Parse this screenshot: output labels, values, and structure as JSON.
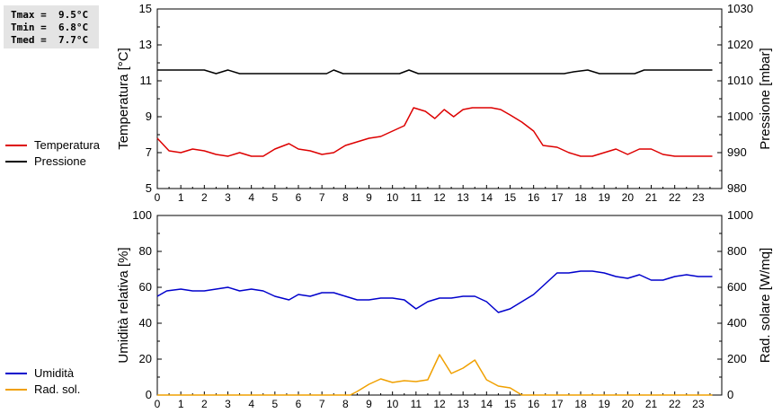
{
  "stats": {
    "tmax": "Tmax =  9.5°C",
    "tmin": "Tmin =  6.8°C",
    "tmed": "Tmed =  7.7°C"
  },
  "colors": {
    "temperatura": "#dd0000",
    "pressione": "#000000",
    "umidita": "#0000cc",
    "rad_sol": "#f0a000",
    "axis": "#000000",
    "grid": "#000000"
  },
  "legend_top": [
    {
      "label": "Temperatura",
      "color_key": "temperatura"
    },
    {
      "label": "Pressione",
      "color_key": "pressione"
    }
  ],
  "legend_bottom": [
    {
      "label": "Umidità",
      "color_key": "umidita"
    },
    {
      "label": "Rad. sol.",
      "color_key": "rad_sol"
    }
  ],
  "chart_data": [
    {
      "type": "line",
      "x_ticks": [
        "0",
        "1",
        "2",
        "3",
        "4",
        "5",
        "6",
        "7",
        "8",
        "9",
        "10",
        "11",
        "12",
        "13",
        "14",
        "15",
        "16",
        "17",
        "18",
        "19",
        "20",
        "21",
        "22",
        "23"
      ],
      "xlim": [
        0,
        24
      ],
      "ylabel": "Temperatura [°C]",
      "ylim": [
        5,
        15
      ],
      "y_ticks": [
        "5",
        "7",
        "9",
        "11",
        "13",
        "15"
      ],
      "ylabel_right": "Pressione [mbar]",
      "ylim_right": [
        980,
        1030
      ],
      "y_ticks_right": [
        "980",
        "990",
        "1000",
        "1010",
        "1020",
        "1030"
      ],
      "grid": false,
      "series": [
        {
          "name": "Temperatura",
          "axis": "left",
          "color_key": "temperatura",
          "x": [
            0,
            0.5,
            1,
            1.5,
            2,
            2.5,
            3,
            3.5,
            4,
            4.5,
            5,
            5.6,
            6,
            6.5,
            7,
            7.5,
            8,
            8.5,
            9,
            9.5,
            10,
            10.5,
            10.9,
            11.4,
            11.8,
            12.2,
            12.6,
            13,
            13.4,
            13.8,
            14.2,
            14.6,
            15,
            15.5,
            16,
            16.4,
            17,
            17.5,
            18,
            18.5,
            19,
            19.5,
            20,
            20.5,
            21,
            21.5,
            22,
            22.5,
            23,
            23.6
          ],
          "y": [
            7.8,
            7.1,
            7.0,
            7.2,
            7.1,
            6.9,
            6.8,
            7.0,
            6.8,
            6.8,
            7.2,
            7.5,
            7.2,
            7.1,
            6.9,
            7.0,
            7.4,
            7.6,
            7.8,
            7.9,
            8.2,
            8.5,
            9.5,
            9.3,
            8.9,
            9.4,
            9.0,
            9.4,
            9.5,
            9.5,
            9.5,
            9.4,
            9.1,
            8.7,
            8.2,
            7.4,
            7.3,
            7.0,
            6.8,
            6.8,
            7.0,
            7.2,
            6.9,
            7.2,
            7.2,
            6.9,
            6.8,
            6.8,
            6.8,
            6.8
          ]
        },
        {
          "name": "Pressione",
          "axis": "right",
          "color_key": "pressione",
          "x": [
            0,
            2,
            2.5,
            3,
            3.5,
            7.2,
            7.5,
            7.9,
            10.3,
            10.7,
            11.1,
            17.3,
            17.7,
            18.3,
            18.8,
            20.3,
            20.7,
            23.6
          ],
          "y": [
            1013,
            1013,
            1012,
            1013,
            1012,
            1012,
            1013,
            1012,
            1012,
            1013,
            1012,
            1012,
            1012.5,
            1013,
            1012,
            1012,
            1013,
            1013
          ]
        }
      ]
    },
    {
      "type": "line",
      "x_ticks": [
        "0",
        "1",
        "2",
        "3",
        "4",
        "5",
        "6",
        "7",
        "8",
        "9",
        "10",
        "11",
        "12",
        "13",
        "14",
        "15",
        "16",
        "17",
        "18",
        "19",
        "20",
        "21",
        "22",
        "23"
      ],
      "xlim": [
        0,
        24
      ],
      "ylabel": "Umidità relativa [%]",
      "ylim": [
        0,
        100
      ],
      "y_ticks": [
        "0",
        "20",
        "40",
        "60",
        "80",
        "100"
      ],
      "ylabel_right": "Rad. solare [W/mq]",
      "ylim_right": [
        0,
        1000
      ],
      "y_ticks_right": [
        "0",
        "200",
        "400",
        "600",
        "800",
        "1000"
      ],
      "grid": false,
      "series": [
        {
          "name": "Umidità",
          "axis": "left",
          "color_key": "umidita",
          "x": [
            0,
            0.4,
            1,
            1.5,
            2,
            2.5,
            3,
            3.5,
            4,
            4.5,
            5,
            5.6,
            6,
            6.5,
            7,
            7.5,
            8,
            8.5,
            9,
            9.5,
            10,
            10.5,
            11,
            11.5,
            12,
            12.5,
            13,
            13.5,
            14,
            14.5,
            15,
            15.5,
            16,
            16.5,
            17,
            17.5,
            18,
            18.5,
            19,
            19.5,
            20,
            20.5,
            21,
            21.5,
            22,
            22.5,
            23,
            23.6
          ],
          "y": [
            55,
            58,
            59,
            58,
            58,
            59,
            60,
            58,
            59,
            58,
            55,
            53,
            56,
            55,
            57,
            57,
            55,
            53,
            53,
            54,
            54,
            53,
            48,
            52,
            54,
            54,
            55,
            55,
            52,
            46,
            48,
            52,
            56,
            62,
            68,
            68,
            69,
            69,
            68,
            66,
            65,
            67,
            64,
            64,
            66,
            67,
            66,
            66
          ]
        },
        {
          "name": "Rad. sol.",
          "axis": "right",
          "color_key": "rad_sol",
          "x": [
            0,
            8.2,
            8.5,
            9,
            9.5,
            10,
            10.5,
            11,
            11.5,
            12,
            12.5,
            13,
            13.5,
            14,
            14.5,
            15,
            15.5,
            23.6
          ],
          "y": [
            0,
            0,
            20,
            60,
            90,
            70,
            80,
            75,
            85,
            225,
            120,
            150,
            195,
            85,
            50,
            40,
            0,
            0
          ]
        }
      ]
    }
  ]
}
